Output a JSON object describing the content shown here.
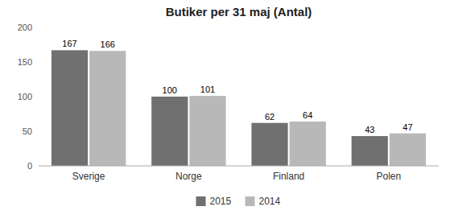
{
  "chart_data": {
    "type": "bar",
    "title": "Butiker per 31 maj (Antal)",
    "categories": [
      "Sverige",
      "Norge",
      "Finland",
      "Polen"
    ],
    "series": [
      {
        "name": "2015",
        "color": "#707070",
        "values": [
          167,
          100,
          62,
          43
        ]
      },
      {
        "name": "2014",
        "color": "#b8b8b8",
        "values": [
          166,
          101,
          64,
          47
        ]
      }
    ],
    "ylim": [
      0,
      200
    ],
    "yticks": [
      0,
      50,
      100,
      150,
      200
    ],
    "grid": false,
    "legend": "bottom",
    "data_labels": true
  }
}
